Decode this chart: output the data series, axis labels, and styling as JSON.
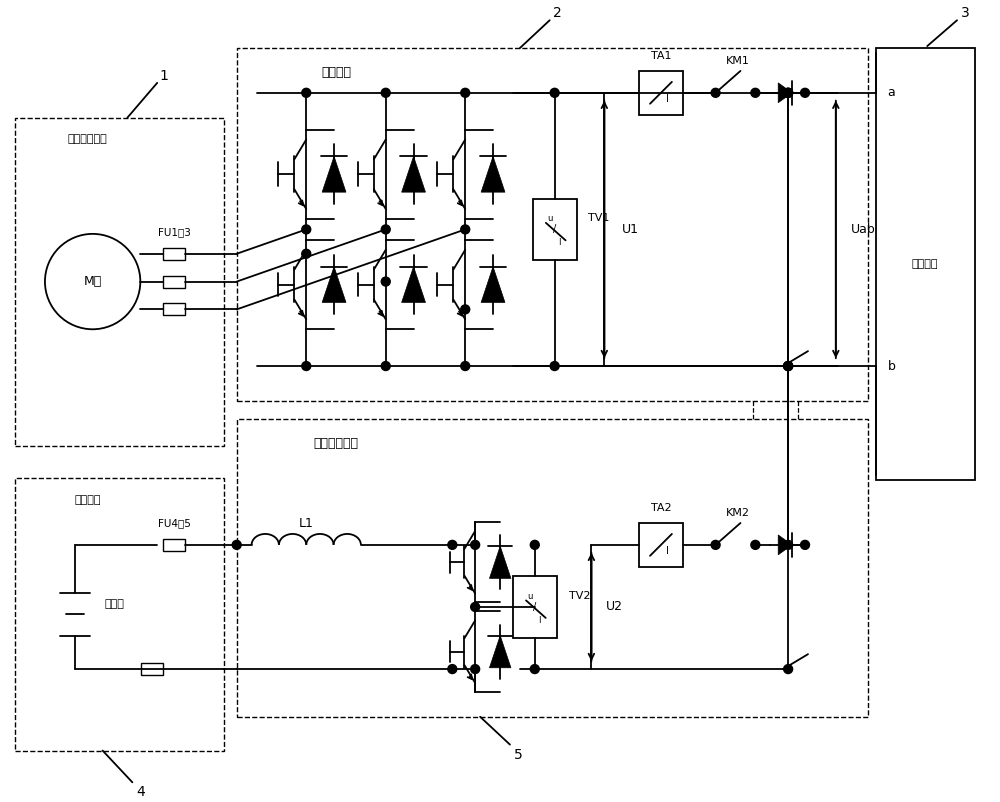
{
  "bg_color": "#ffffff",
  "line_color": "#000000",
  "labels": {
    "num1": "1",
    "num2": "2",
    "num3": "3",
    "num4": "4",
    "num5": "5",
    "diesel_gen": "柴油发电机组",
    "rectifier": "整流装置",
    "power_conv": "电源转换装置",
    "battery_group": "蓄电池组",
    "battery": "蓄电池",
    "load": "用电设备",
    "FU1_3": "FU1～3",
    "FU4_5": "FU4～5",
    "TA1": "TA1",
    "TA2": "TA2",
    "KM1": "KM1",
    "KM2": "KM2",
    "TV1": "TV1",
    "TV2": "TV2",
    "U1": "U1",
    "U2": "U2",
    "Uab": "Uab",
    "L1": "L1",
    "a": "a",
    "b": "b",
    "M": "M～"
  }
}
